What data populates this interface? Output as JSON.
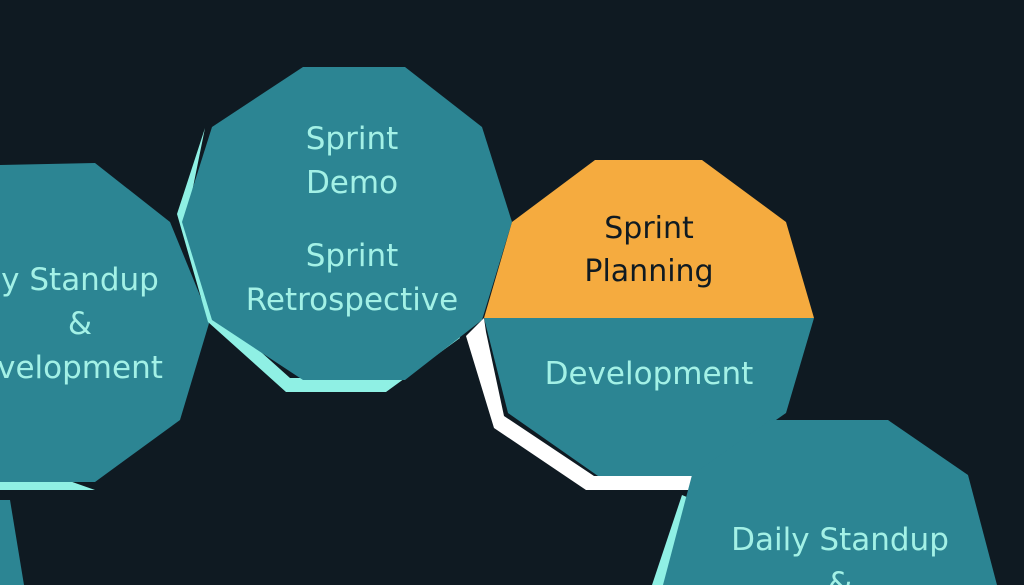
{
  "colors": {
    "background": "#0f1a22",
    "node_fill": "#2c8593",
    "node_shadow": "#8ff0e4",
    "highlight_fill": "#f5ab3f",
    "highlight_shadow": "#ffffff",
    "label_light": "#a3f1e6",
    "label_dark": "#0f1a22"
  },
  "nodes": {
    "left": {
      "lines": [
        "y Standup",
        "&",
        "velopment"
      ]
    },
    "review": {
      "top_lines": [
        "Sprint",
        "Demo"
      ],
      "bottom_lines": [
        "Sprint",
        "Retrospective"
      ]
    },
    "planning": {
      "top_lines": [
        "Sprint",
        "Planning"
      ],
      "bottom_lines": [
        "Development"
      ]
    },
    "right": {
      "lines": [
        "Daily Standup",
        "&"
      ]
    }
  }
}
